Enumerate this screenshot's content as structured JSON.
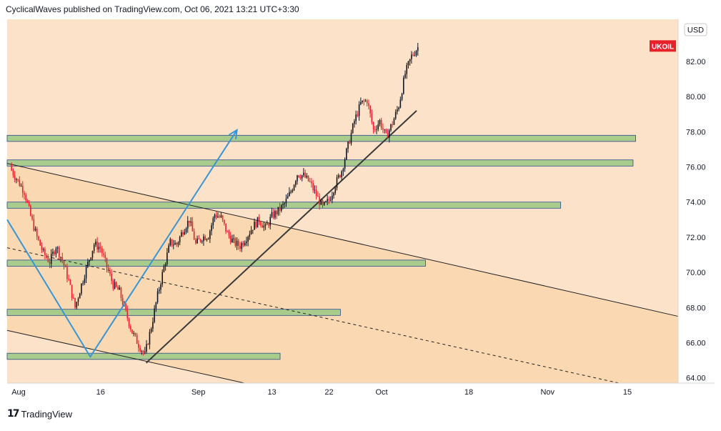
{
  "header": {
    "publish_line": "CyclicalWaves published on TradingView.com, Oct 06, 2021 13:21 UTC+3:30"
  },
  "footer": {
    "brand": "TradingView",
    "logo_icon": "tradingview-logo-icon"
  },
  "colors": {
    "background": "#fbe2c8",
    "channel_fill": "#f9d8b2",
    "zone_fill": "#a9cc8c",
    "zone_border": "#2a4a8a",
    "candle_up": "#131722",
    "candle_down": "#e8202a",
    "arrow": "#3a95d6",
    "trendline": "#3a3a3a",
    "symbol_badge": "#e8202a"
  },
  "chart_data": {
    "type": "candlestick",
    "symbol": "UKOIL",
    "currency": "USD",
    "ylim": [
      63.7,
      84.4
    ],
    "yticks": [
      "64.00",
      "66.00",
      "68.00",
      "70.00",
      "72.00",
      "74.00",
      "76.00",
      "78.00",
      "80.00",
      "82.00"
    ],
    "xlim_days": [
      -0.7,
      105
    ],
    "xticks": [
      {
        "label": "Aug",
        "day": 0
      },
      {
        "label": "16",
        "day": 14
      },
      {
        "label": "Sep",
        "day": 29
      },
      {
        "label": "13",
        "day": 41
      },
      {
        "label": "22",
        "day": 50
      },
      {
        "label": "Oct",
        "day": 58
      },
      {
        "label": "18",
        "day": 72
      },
      {
        "label": "Nov",
        "day": 84
      },
      {
        "label": "15",
        "day": 97
      }
    ],
    "close_path": [
      [
        0,
        75.8
      ],
      [
        1,
        75.2
      ],
      [
        2,
        74.6
      ],
      [
        3,
        73.2
      ],
      [
        4,
        72.0
      ],
      [
        5,
        71.1
      ],
      [
        6,
        70.6
      ],
      [
        7,
        71.5
      ],
      [
        8,
        70.7
      ],
      [
        9,
        69.5
      ],
      [
        10,
        68.0
      ],
      [
        11,
        69.3
      ],
      [
        12,
        70.5
      ],
      [
        13,
        71.6
      ],
      [
        14,
        71.4
      ],
      [
        15,
        70.3
      ],
      [
        16,
        69.3
      ],
      [
        17,
        68.9
      ],
      [
        18,
        67.7
      ],
      [
        19,
        66.6
      ],
      [
        20,
        65.9
      ],
      [
        21,
        65.3
      ],
      [
        22,
        66.9
      ],
      [
        23,
        68.7
      ],
      [
        24,
        70.3
      ],
      [
        25,
        71.7
      ],
      [
        26,
        71.6
      ],
      [
        27,
        72.4
      ],
      [
        28,
        73.0
      ],
      [
        29,
        71.6
      ],
      [
        30,
        72.0
      ],
      [
        31,
        72.1
      ],
      [
        32,
        73.3
      ],
      [
        33,
        73.1
      ],
      [
        34,
        72.2
      ],
      [
        35,
        71.7
      ],
      [
        36,
        71.5
      ],
      [
        37,
        72.0
      ],
      [
        38,
        72.6
      ],
      [
        39,
        73.0
      ],
      [
        40,
        72.5
      ],
      [
        41,
        73.2
      ],
      [
        42,
        73.5
      ],
      [
        43,
        73.9
      ],
      [
        44,
        74.6
      ],
      [
        45,
        75.6
      ],
      [
        46,
        75.5
      ],
      [
        47,
        75.1
      ],
      [
        48,
        74.4
      ],
      [
        49,
        73.7
      ],
      [
        50,
        74.1
      ],
      [
        51,
        75.0
      ],
      [
        52,
        75.8
      ],
      [
        53,
        77.2
      ],
      [
        54,
        78.6
      ],
      [
        55,
        79.6
      ],
      [
        56,
        79.8
      ],
      [
        57,
        78.1
      ],
      [
        58,
        78.6
      ],
      [
        59,
        77.7
      ],
      [
        60,
        78.5
      ],
      [
        61,
        79.5
      ],
      [
        62,
        81.3
      ],
      [
        63,
        82.3
      ],
      [
        64,
        82.8
      ]
    ],
    "horizontal_zones": [
      {
        "low": 77.45,
        "high": 77.8,
        "day_start": -0.7,
        "day_end": 98.3
      },
      {
        "low": 76.05,
        "high": 76.4,
        "day_start": -0.7,
        "day_end": 97.9
      },
      {
        "low": 73.65,
        "high": 74.0,
        "day_start": -0.7,
        "day_end": 86.5
      },
      {
        "low": 70.35,
        "high": 70.7,
        "day_start": -0.7,
        "day_end": 65.2
      },
      {
        "low": 67.55,
        "high": 67.9,
        "day_start": -0.7,
        "day_end": 51.8
      },
      {
        "low": 65.05,
        "high": 65.4,
        "day_start": -0.7,
        "day_end": 42.3
      }
    ],
    "channel_upper": [
      [
        -0.7,
        76.2
      ],
      [
        105,
        67.5
      ]
    ],
    "channel_lower": [
      [
        -0.7,
        66.7
      ],
      [
        36.7,
        63.7
      ]
    ],
    "channel_mid": [
      [
        -0.7,
        71.4
      ],
      [
        95.7,
        63.7
      ]
    ],
    "uptrend": [
      [
        21.2,
        64.85
      ],
      [
        63.8,
        79.2
      ]
    ],
    "projection_arrow": [
      [
        -0.7,
        73.0
      ],
      [
        12.4,
        65.2
      ],
      [
        35.5,
        78.1
      ]
    ]
  }
}
